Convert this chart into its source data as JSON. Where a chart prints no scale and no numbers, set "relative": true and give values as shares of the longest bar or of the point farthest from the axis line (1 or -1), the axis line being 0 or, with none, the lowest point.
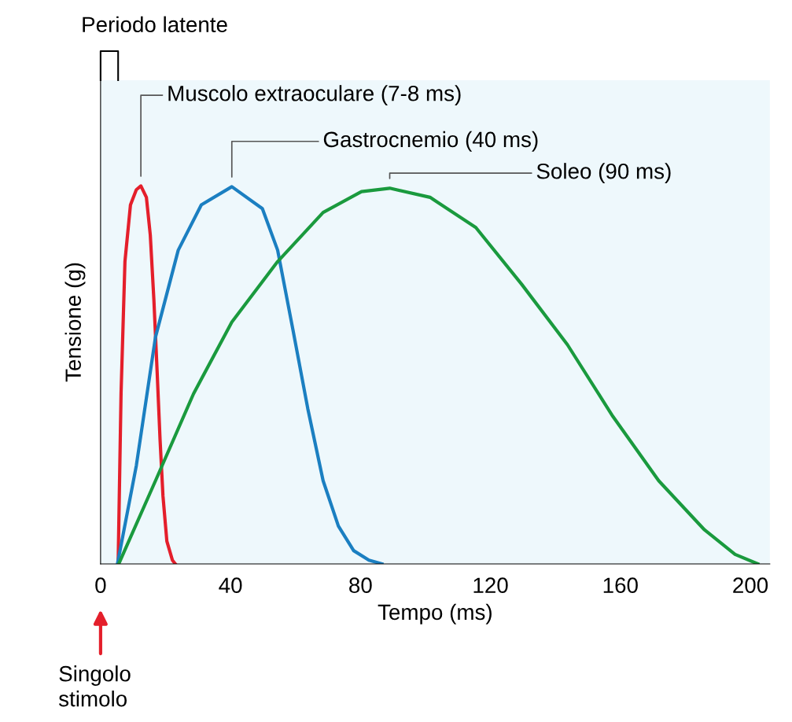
{
  "chart_data": {
    "type": "line",
    "xlabel": "Tempo (ms)",
    "ylabel": "Tensione (g)",
    "relative": true,
    "xlim": [
      0,
      206
    ],
    "xticks": [
      0,
      40,
      80,
      120,
      160,
      200
    ],
    "grid": false,
    "legend": false,
    "marker": "none",
    "line_style": "solid",
    "series": [
      {
        "color": "#e41f2b",
        "x": [
          5.4,
          6.3,
          7.5,
          9.2,
          11.0,
          12.4,
          14.1,
          15.3,
          16.4,
          17.4,
          18.3,
          19.2,
          20.4,
          22.1,
          23.0
        ],
        "values": [
          0,
          0.45,
          0.8,
          0.95,
          0.99,
          1,
          0.97,
          0.87,
          0.7,
          0.51,
          0.33,
          0.18,
          0.06,
          0.01,
          0
        ]
      },
      {
        "color": "#1b7fc1",
        "x": [
          5.2,
          11.0,
          16.9,
          23.9,
          31.0,
          40.4,
          49.8,
          54.5,
          59.2,
          63.8,
          68.5,
          73.2,
          77.9,
          82.6,
          86.6
        ],
        "values": [
          0,
          0.26,
          0.6,
          0.83,
          0.95,
          0.998,
          0.94,
          0.83,
          0.62,
          0.41,
          0.22,
          0.1,
          0.035,
          0.01,
          0
        ]
      },
      {
        "color": "#1a9a3e",
        "x": [
          5.6,
          16.9,
          28.6,
          40.4,
          54.5,
          68.5,
          80.3,
          89.0,
          101.4,
          115.5,
          129.6,
          143.7,
          157.7,
          171.8,
          185.9,
          195.3,
          202.3
        ],
        "values": [
          0,
          0.22,
          0.45,
          0.64,
          0.8,
          0.93,
          0.985,
          0.994,
          0.97,
          0.89,
          0.74,
          0.58,
          0.39,
          0.22,
          0.09,
          0.025,
          0
        ]
      }
    ],
    "annotations": [
      "Muscolo extraoculare (7-8 ms)",
      "Gastrocnemio (40 ms)",
      "Soleo (90 ms)",
      "Singolo\nstimolo",
      "Periodo latente"
    ]
  }
}
